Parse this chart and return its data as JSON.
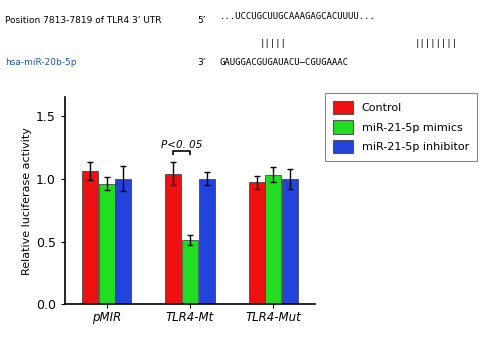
{
  "groups": [
    "pMIR",
    "TLR4-Mt",
    "TLR4-Mut"
  ],
  "bar_values": [
    [
      1.06,
      0.96,
      1.0
    ],
    [
      1.04,
      0.51,
      1.0
    ],
    [
      0.97,
      1.03,
      1.0
    ]
  ],
  "bar_errors": [
    [
      0.07,
      0.05,
      0.1
    ],
    [
      0.09,
      0.04,
      0.05
    ],
    [
      0.05,
      0.06,
      0.08
    ]
  ],
  "bar_colors": [
    "#ee1111",
    "#22dd22",
    "#2244dd"
  ],
  "legend_labels": [
    "Control",
    "miR-21-5p mimics",
    "miR-21-5p inhibitor"
  ],
  "ylabel": "Relative luciferase activity",
  "ylim": [
    0,
    1.65
  ],
  "yticks": [
    0.0,
    0.5,
    1.0,
    1.5
  ],
  "significance_text": "P<0. 05",
  "sig_group_index": 1,
  "header_bg": "#ccd8ee",
  "header_line1": "Position 7813-7819 of TLR4 3’ UTR",
  "header_seq1_label": "5’",
  "header_seq1": "...UCCUGCUUGCAAAGAGCACUUUU...",
  "header_bars1": "|||||",
  "header_bars2": "||||||||",
  "header_seq2_label": "3’",
  "header_seq2": "GAUGGACGUGAUACU—CGUGAAAC",
  "header_line2": "hsa-miR-20b-5p",
  "fig_bg": "#ffffff",
  "border_color": "#aaaacc"
}
